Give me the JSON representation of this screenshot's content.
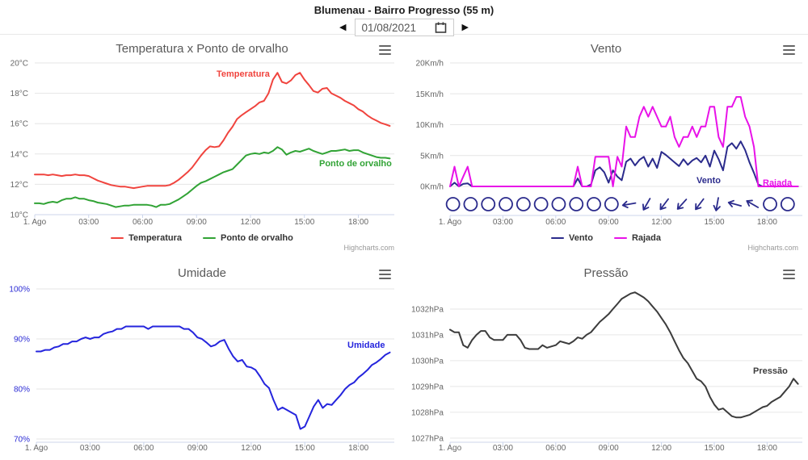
{
  "header": {
    "title": "Blumenau - Bairro Progresso (55 m)",
    "date_value": "01/08/2021",
    "prev_icon": "◀",
    "next_icon": "▶",
    "calendar_icon": "calendar-icon"
  },
  "credits_label": "Highcharts.com",
  "colors": {
    "temperature": "#f0443e",
    "dewpoint": "#31a335",
    "wind": "#2b2b8c",
    "gust": "#e812e8",
    "humidity": "#2525dd",
    "pressure": "#3c3c3c",
    "axis_line": "#ccd6eb",
    "gridline": "#e6e6e6",
    "axis_label": "#666666",
    "humidity_axis_label": "#2a2ad4"
  },
  "chart_data": [
    {
      "type": "line",
      "title": "Temperatura x Ponto de orvalho",
      "x_step_minutes": 15,
      "x_axis_minutes_max": 1200,
      "xtick_minutes": [
        0,
        180,
        360,
        540,
        720,
        900,
        1080
      ],
      "xtick_labels": [
        "1. Ago",
        "03:00",
        "06:00",
        "09:00",
        "12:00",
        "15:00",
        "18:00"
      ],
      "ylim": [
        10,
        20
      ],
      "ytick_values": [
        10,
        12,
        14,
        16,
        18,
        20
      ],
      "ytick_labels": [
        "10°C",
        "12°C",
        "14°C",
        "16°C",
        "18°C",
        "20°C"
      ],
      "ytick_color": "#666666",
      "legend": "bottom",
      "grid": true,
      "series": [
        {
          "name": "Temperatura",
          "color": "#f0443e",
          "values": [
            12.65,
            12.65,
            12.65,
            12.6,
            12.65,
            12.6,
            12.55,
            12.6,
            12.6,
            12.65,
            12.6,
            12.6,
            12.55,
            12.4,
            12.25,
            12.15,
            12.05,
            11.95,
            11.9,
            11.85,
            11.85,
            11.8,
            11.75,
            11.8,
            11.85,
            11.9,
            11.9,
            11.9,
            11.9,
            11.9,
            11.95,
            12.1,
            12.3,
            12.55,
            12.8,
            13.1,
            13.5,
            13.9,
            14.25,
            14.5,
            14.45,
            14.5,
            14.9,
            15.4,
            15.8,
            16.3,
            16.55,
            16.75,
            16.95,
            17.15,
            17.4,
            17.5,
            18.0,
            18.9,
            19.35,
            18.75,
            18.65,
            18.85,
            19.2,
            19.35,
            18.9,
            18.55,
            18.15,
            18.05,
            18.3,
            18.35,
            18.0,
            17.85,
            17.7,
            17.5,
            17.35,
            17.2,
            16.95,
            16.8,
            16.55,
            16.35,
            16.2,
            16.05,
            15.95,
            15.85
          ]
        },
        {
          "name": "Ponto de orvalho",
          "color": "#31a335",
          "values": [
            10.75,
            10.75,
            10.7,
            10.8,
            10.85,
            10.8,
            10.95,
            11.05,
            11.05,
            11.15,
            11.05,
            11.05,
            10.95,
            10.9,
            10.8,
            10.75,
            10.7,
            10.6,
            10.5,
            10.55,
            10.6,
            10.6,
            10.65,
            10.65,
            10.65,
            10.65,
            10.6,
            10.5,
            10.65,
            10.65,
            10.7,
            10.85,
            11.0,
            11.2,
            11.4,
            11.65,
            11.9,
            12.1,
            12.2,
            12.35,
            12.5,
            12.65,
            12.8,
            12.9,
            13.0,
            13.3,
            13.6,
            13.9,
            14.0,
            14.05,
            14.0,
            14.1,
            14.05,
            14.2,
            14.45,
            14.3,
            13.95,
            14.1,
            14.2,
            14.15,
            14.25,
            14.35,
            14.2,
            14.1,
            14.0,
            14.1,
            14.2,
            14.2,
            14.25,
            14.3,
            14.2,
            14.25,
            14.25,
            14.1,
            14.0,
            13.9,
            13.8,
            13.75,
            13.75,
            13.7
          ]
        }
      ]
    },
    {
      "type": "line",
      "title": "Vento",
      "x_step_minutes": 15,
      "x_axis_minutes_max": 1200,
      "xtick_minutes": [
        0,
        180,
        360,
        540,
        720,
        900,
        1080
      ],
      "xtick_labels": [
        "1. Ago",
        "03:00",
        "06:00",
        "09:00",
        "12:00",
        "15:00",
        "18:00"
      ],
      "ylim": [
        0,
        20
      ],
      "ytick_values": [
        0,
        5,
        10,
        15,
        20
      ],
      "ytick_labels": [
        "0Km/h",
        "5Km/h",
        "10Km/h",
        "15Km/h",
        "20Km/h"
      ],
      "ytick_color": "#666666",
      "legend": "bottom",
      "grid": true,
      "wind_directions_hourly_deg_null_is_calm": [
        null,
        null,
        null,
        null,
        null,
        null,
        null,
        null,
        null,
        null,
        170,
        120,
        127,
        132,
        127,
        100,
        195,
        210,
        null,
        null
      ],
      "series": [
        {
          "name": "Vento",
          "color": "#2b2b8c",
          "values": [
            0,
            0.6,
            0,
            0.4,
            0.5,
            0,
            0,
            0,
            0,
            0,
            0,
            0,
            0,
            0,
            0,
            0,
            0,
            0,
            0,
            0,
            0,
            0,
            0,
            0,
            0,
            0,
            0,
            0,
            0,
            1.3,
            0,
            0,
            0.3,
            2.6,
            3.1,
            2.3,
            0.6,
            2.6,
            1.6,
            1.0,
            4.0,
            4.5,
            3.4,
            4.3,
            4.8,
            3.2,
            4.5,
            3.0,
            5.6,
            5.1,
            4.5,
            3.9,
            3.3,
            4.4,
            3.5,
            4.2,
            4.6,
            3.9,
            5.0,
            3.2,
            5.8,
            4.4,
            2.6,
            6.4,
            7.0,
            6.1,
            7.3,
            5.9,
            3.9,
            2.2,
            0.3,
            0,
            0,
            0,
            0,
            0,
            0,
            0,
            0,
            0
          ]
        },
        {
          "name": "Rajada",
          "color": "#e812e8",
          "values": [
            0,
            3.2,
            0,
            1.6,
            3.2,
            0,
            0,
            0,
            0,
            0,
            0,
            0,
            0,
            0,
            0,
            0,
            0,
            0,
            0,
            0,
            0,
            0,
            0,
            0,
            0,
            0,
            0,
            0,
            0,
            3.2,
            0,
            0,
            0,
            4.8,
            4.8,
            4.8,
            4.8,
            0,
            4.8,
            3.2,
            9.7,
            8.0,
            8.0,
            11.3,
            12.9,
            11.3,
            12.9,
            11.3,
            9.7,
            9.7,
            11.3,
            8.0,
            6.4,
            8.0,
            8.0,
            9.7,
            8.0,
            9.7,
            9.7,
            12.9,
            12.9,
            8.0,
            6.4,
            12.9,
            12.9,
            14.5,
            14.5,
            11.3,
            9.7,
            6.4,
            0,
            0,
            0,
            0,
            0,
            0,
            0,
            0,
            0,
            0
          ]
        }
      ]
    },
    {
      "type": "line",
      "title": "Umidade",
      "x_step_minutes": 15,
      "x_axis_minutes_max": 1200,
      "xtick_minutes": [
        0,
        180,
        360,
        540,
        720,
        900,
        1080
      ],
      "xtick_labels": [
        "1. Ago",
        "03:00",
        "06:00",
        "09:00",
        "12:00",
        "15:00",
        "18:00"
      ],
      "ylim": [
        69.35,
        100
      ],
      "ytick_values": [
        70,
        80,
        90,
        100
      ],
      "ytick_labels": [
        "70%",
        "80%",
        "90%",
        "100%"
      ],
      "ytick_color": "#2a2ad4",
      "legend": false,
      "grid": true,
      "series": [
        {
          "name": "Umidade",
          "color": "#2525dd",
          "values": [
            87.5,
            87.5,
            87.8,
            87.8,
            88.3,
            88.5,
            89.0,
            89.0,
            89.5,
            89.5,
            90.0,
            90.3,
            90.0,
            90.3,
            90.3,
            91.0,
            91.3,
            91.5,
            92.0,
            92.0,
            92.5,
            92.5,
            92.5,
            92.5,
            92.5,
            92.0,
            92.5,
            92.5,
            92.5,
            92.5,
            92.5,
            92.5,
            92.5,
            92.0,
            92.0,
            91.3,
            90.3,
            90.0,
            89.3,
            88.5,
            88.8,
            89.5,
            89.8,
            88.0,
            86.5,
            85.5,
            85.8,
            84.5,
            84.3,
            83.8,
            82.5,
            81.0,
            80.2,
            77.8,
            75.8,
            76.3,
            75.8,
            75.3,
            74.8,
            72.0,
            72.5,
            74.5,
            76.5,
            77.8,
            76.2,
            77.0,
            76.8,
            77.8,
            78.8,
            80.0,
            80.8,
            81.3,
            82.3,
            83.0,
            83.8,
            84.8,
            85.3,
            86.0,
            86.8,
            87.3
          ]
        }
      ]
    },
    {
      "type": "line",
      "title": "Pressão",
      "x_step_minutes": 15,
      "x_axis_minutes_max": 1200,
      "xtick_minutes": [
        0,
        180,
        360,
        540,
        720,
        900,
        1080
      ],
      "xtick_labels": [
        "1. Ago",
        "03:00",
        "06:00",
        "09:00",
        "12:00",
        "15:00",
        "18:00"
      ],
      "ylim": [
        1026.84,
        1032.78
      ],
      "ytick_values": [
        1027,
        1028,
        1029,
        1030,
        1031,
        1032
      ],
      "ytick_labels": [
        "1027hPa",
        "1028hPa",
        "1029hPa",
        "1030hPa",
        "1031hPa",
        "1032hPa"
      ],
      "ytick_color": "#666666",
      "legend": false,
      "grid": true,
      "series": [
        {
          "name": "Pressão",
          "color": "#3c3c3c",
          "values": [
            1031.2,
            1031.1,
            1031.1,
            1030.6,
            1030.5,
            1030.8,
            1031.0,
            1031.15,
            1031.15,
            1030.9,
            1030.8,
            1030.8,
            1030.8,
            1031.0,
            1031.0,
            1031.0,
            1030.8,
            1030.5,
            1030.45,
            1030.45,
            1030.45,
            1030.6,
            1030.5,
            1030.55,
            1030.6,
            1030.75,
            1030.7,
            1030.65,
            1030.75,
            1030.9,
            1030.85,
            1031.0,
            1031.1,
            1031.3,
            1031.5,
            1031.65,
            1031.8,
            1032.0,
            1032.2,
            1032.4,
            1032.5,
            1032.6,
            1032.65,
            1032.55,
            1032.45,
            1032.3,
            1032.1,
            1031.9,
            1031.65,
            1031.4,
            1031.1,
            1030.75,
            1030.4,
            1030.1,
            1029.9,
            1029.6,
            1029.3,
            1029.2,
            1029.0,
            1028.6,
            1028.3,
            1028.1,
            1028.15,
            1028.0,
            1027.85,
            1027.8,
            1027.8,
            1027.85,
            1027.9,
            1028.0,
            1028.1,
            1028.2,
            1028.25,
            1028.4,
            1028.5,
            1028.6,
            1028.8,
            1029.0,
            1029.3,
            1029.1
          ]
        }
      ]
    }
  ]
}
